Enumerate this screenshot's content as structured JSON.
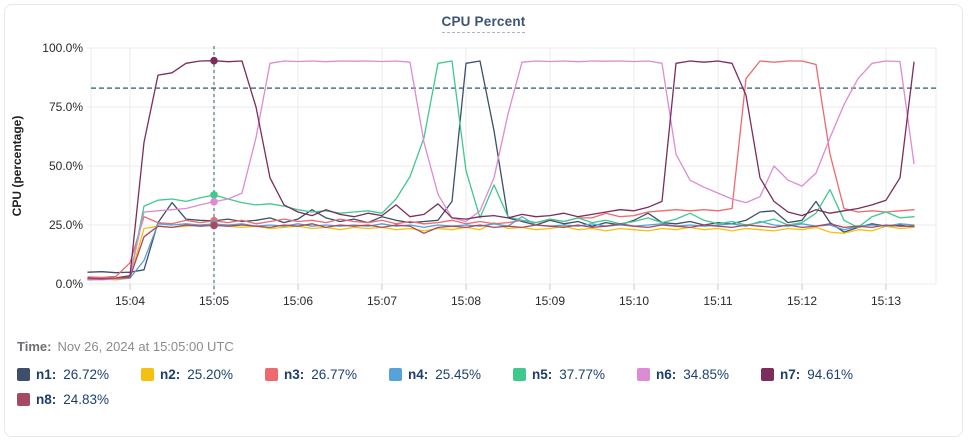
{
  "header": {
    "title": "CPU Percent"
  },
  "footer": {
    "time_label": "Time:",
    "time_value": "Nov 26, 2024 at 15:05:00 UTC"
  },
  "legend": {
    "items": [
      {
        "name": "n1:",
        "value": "26.72%",
        "color": "#3d4f6b"
      },
      {
        "name": "n2:",
        "value": "25.20%",
        "color": "#f4c10e"
      },
      {
        "name": "n3:",
        "value": "26.77%",
        "color": "#ee6a6d"
      },
      {
        "name": "n4:",
        "value": "25.45%",
        "color": "#55a3d8"
      },
      {
        "name": "n5:",
        "value": "37.77%",
        "color": "#3fc98c"
      },
      {
        "name": "n6:",
        "value": "34.85%",
        "color": "#dd8bd4"
      },
      {
        "name": "n7:",
        "value": "94.61%",
        "color": "#7c2d5c"
      },
      {
        "name": "n8:",
        "value": "24.83%",
        "color": "#a64a62"
      }
    ]
  },
  "chart_data": {
    "type": "line",
    "title": "CPU Percent",
    "ylabel": "CPU (percentage)",
    "ylim": [
      0,
      100
    ],
    "y_tick_values": [
      0,
      25,
      50,
      75,
      100
    ],
    "y_tick_labels": [
      "0.0%",
      "25.0%",
      "50.0%",
      "75.0%",
      "100.0%"
    ],
    "x_tick_labels": [
      "15:04",
      "15:05",
      "15:06",
      "15:07",
      "15:08",
      "15:09",
      "15:10",
      "15:11",
      "15:12",
      "15:13"
    ],
    "x_tick_minutes": [
      0,
      1,
      2,
      3,
      4,
      5,
      6,
      7,
      8,
      9
    ],
    "x_start_min": -0.5,
    "x_step_min": 0.16667,
    "grid": true,
    "threshold_percent": 83,
    "crosshair": {
      "time_label": "15:05",
      "time_min": 1.0,
      "sample_index": 9
    },
    "series": [
      {
        "name": "n1",
        "color": "#3d4f6b",
        "values": [
          5,
          5.2,
          4.8,
          5,
          6,
          26,
          34.5,
          27.5,
          27,
          26.72,
          27.5,
          26.5,
          27,
          28,
          26,
          27.5,
          31.5,
          28,
          26.5,
          27.5,
          26,
          28.5,
          27,
          26,
          26.5,
          27,
          35,
          93.5,
          94.5,
          65,
          28,
          26.5,
          25,
          27,
          25.5,
          26.5,
          24.5,
          26,
          25,
          27,
          30,
          26,
          25.5,
          26.5,
          25,
          26,
          25.5,
          27,
          30.5,
          31,
          26,
          27,
          35,
          26,
          22,
          24,
          25.5,
          24.5,
          25,
          24
        ]
      },
      {
        "name": "n2",
        "color": "#f4c10e",
        "values": [
          2,
          2.2,
          1.8,
          2.5,
          23.5,
          24.5,
          24,
          24.5,
          25,
          25.2,
          24.5,
          24,
          24.5,
          23.5,
          24,
          24.5,
          23.5,
          24,
          23,
          24,
          23.5,
          24,
          23,
          23.5,
          22.5,
          23.5,
          23,
          24,
          23,
          26,
          23.5,
          24,
          23,
          23.5,
          24.5,
          23,
          23.5,
          22.5,
          23.5,
          23,
          22.5,
          23.5,
          23,
          24,
          23,
          23.5,
          22.5,
          23.5,
          23,
          22.5,
          23.5,
          23,
          24,
          22,
          21.5,
          23,
          22.5,
          24.5,
          23.5,
          24
        ]
      },
      {
        "name": "n3",
        "color": "#ee6a6d",
        "values": [
          3,
          2.8,
          3.2,
          9,
          28.5,
          26,
          25.5,
          27,
          26,
          26.77,
          26,
          27,
          25.5,
          26.5,
          27.5,
          26.5,
          27,
          26,
          27.5,
          26.5,
          26,
          27,
          25.5,
          26.5,
          25.5,
          26,
          27,
          25.5,
          26.5,
          25.5,
          26,
          27,
          26,
          27.5,
          26.5,
          28,
          28,
          30,
          28.5,
          29,
          30.5,
          31,
          31.5,
          31,
          31.5,
          31,
          32,
          87,
          94.5,
          94,
          94.5,
          94.5,
          93,
          55,
          32,
          30.5,
          31,
          30.5,
          31,
          31.5
        ]
      },
      {
        "name": "n4",
        "color": "#55a3d8",
        "values": [
          1.8,
          2,
          2.2,
          2.5,
          10,
          25.5,
          25,
          25.5,
          25,
          25.45,
          25,
          25.5,
          24.5,
          25,
          24.5,
          25.5,
          24.5,
          25,
          24.5,
          25,
          24.5,
          25.5,
          24.5,
          25,
          24,
          25,
          24.5,
          25,
          24.5,
          25.5,
          24.5,
          28.5,
          25,
          24.5,
          25,
          24.5,
          25.5,
          24.5,
          25,
          24.5,
          25,
          25.5,
          24.5,
          25,
          24.5,
          25,
          25.5,
          24.5,
          26.5,
          25,
          24.5,
          25.5,
          24.5,
          25,
          23,
          24.5,
          25,
          24.5,
          25.5,
          25
        ]
      },
      {
        "name": "n5",
        "color": "#3fc98c",
        "values": [
          2.2,
          2,
          2.4,
          3,
          33,
          35.5,
          36,
          35,
          36.5,
          37.77,
          36,
          34.5,
          33.5,
          34,
          33,
          31.5,
          30.5,
          31,
          30,
          30.5,
          31,
          30,
          36,
          45.5,
          62,
          93.5,
          94.5,
          48,
          28,
          42,
          28.5,
          27,
          26,
          27.5,
          26.5,
          28,
          26,
          27,
          25.5,
          26.5,
          28,
          26,
          27.5,
          30,
          27,
          25.5,
          26.5,
          25,
          26,
          27.5,
          25,
          26,
          30,
          40,
          27,
          24,
          28.5,
          30.5,
          28,
          28.5
        ]
      },
      {
        "name": "n6",
        "color": "#dd8bd4",
        "values": [
          2,
          1.8,
          2.2,
          3,
          30.5,
          31,
          31.5,
          32,
          33.5,
          34.85,
          36,
          38.5,
          62,
          93.5,
          94.5,
          94.3,
          94.5,
          94.2,
          94.5,
          94.4,
          94.5,
          94.3,
          94.5,
          94,
          60,
          38,
          28,
          26.5,
          31,
          45,
          72,
          94,
          94.5,
          94.3,
          94.5,
          94.2,
          94.5,
          94.4,
          94.5,
          94.3,
          94.5,
          93.5,
          55,
          44,
          41,
          38.5,
          36,
          34.5,
          37,
          50,
          44,
          41.5,
          47,
          62,
          76,
          87,
          93.5,
          94.5,
          94.3,
          51
        ]
      },
      {
        "name": "n7",
        "color": "#7c2d5c",
        "values": [
          2.5,
          2.3,
          2.6,
          3.5,
          60,
          88.5,
          89.5,
          93.5,
          94.5,
          94.61,
          94.2,
          94.5,
          75,
          45,
          33.5,
          30.5,
          29,
          31.5,
          29.5,
          28.5,
          30,
          29,
          33.5,
          28.5,
          29.5,
          34,
          28,
          27.5,
          28.5,
          29,
          28,
          29.5,
          28.5,
          29,
          30,
          28.5,
          29.5,
          30.5,
          31.5,
          31,
          32.5,
          35,
          93.5,
          94.5,
          94,
          94.5,
          93.5,
          80,
          45,
          35,
          30.5,
          29,
          31.5,
          30,
          31,
          32,
          33.5,
          35.5,
          45,
          94
        ]
      },
      {
        "name": "n8",
        "color": "#a64a62",
        "values": [
          2.3,
          2.1,
          2.5,
          2.8,
          20,
          24.5,
          24,
          25,
          24.5,
          24.83,
          24.5,
          25,
          24.5,
          24,
          25,
          24.5,
          25.5,
          24,
          25,
          24.5,
          25,
          24,
          25,
          24.5,
          21.5,
          24,
          24.5,
          24,
          25,
          24,
          24.5,
          24,
          25,
          24.5,
          24,
          25,
          24,
          24.5,
          25.5,
          24.5,
          24,
          25,
          24.5,
          24,
          25,
          24.5,
          24,
          25,
          24.5,
          24,
          25,
          24,
          24.5,
          25.5,
          24,
          24.5,
          24,
          25,
          24.5,
          24.5
        ]
      }
    ],
    "colors": {
      "grid": "#ebebee",
      "axis_text": "#2a2a2e",
      "threshold_line": "#4e7585",
      "crosshair_line": "#4e7585"
    }
  }
}
